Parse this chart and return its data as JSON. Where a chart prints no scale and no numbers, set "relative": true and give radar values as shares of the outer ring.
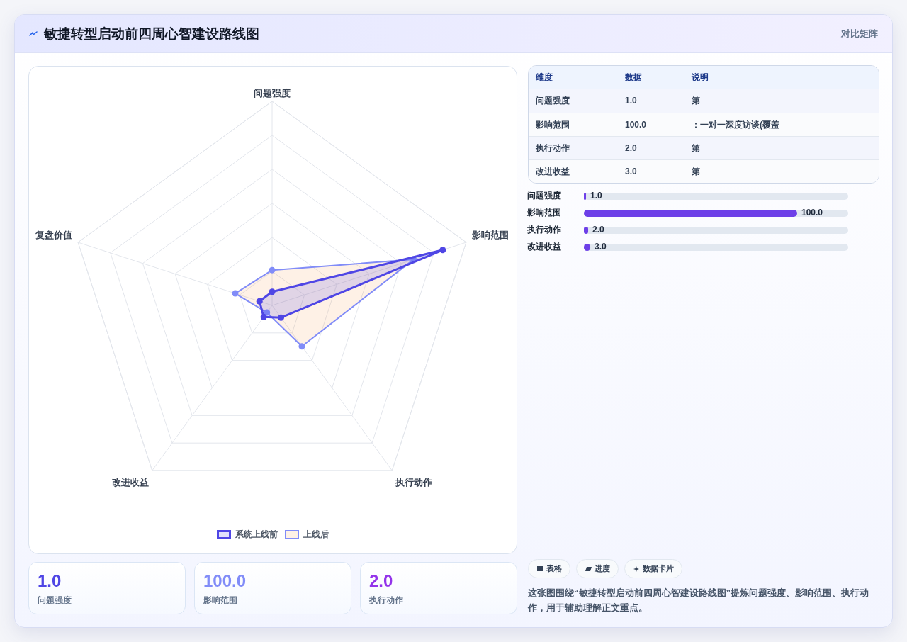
{
  "chart_data": [
    {
      "type": "other",
      "title": "敏捷转型启动前四周心智建设路线图",
      "subtitle": "对比矩阵"
    },
    {
      "type": "radar",
      "categories": [
        "问题强度",
        "影响范围",
        "执行动作",
        "改进收益",
        "复盘价值"
      ],
      "relative": true,
      "grid": true,
      "marker": "circle",
      "legend": "bottom",
      "series": [
        {
          "name": "系统上线前",
          "color": "#4f46e5",
          "values": [
            0.067,
            0.879,
            0.074,
            0.07,
            0.065
          ]
        },
        {
          "name": "上线后",
          "color": "#818cf8",
          "values": [
            0.173,
            0.729,
            0.248,
            0.043,
            0.19
          ]
        }
      ]
    },
    {
      "type": "other",
      "categories": [
        "维度",
        "数据",
        "说明"
      ],
      "cell_labels": [
        [
          "问题强度",
          "1.0",
          "第"
        ],
        [
          "影响范围",
          "100.0",
          "：一对一深度访谈(覆盖"
        ],
        [
          "执行动作",
          "2.0",
          "第"
        ],
        [
          "改进收益",
          "3.0",
          "第"
        ]
      ]
    },
    {
      "type": "bar",
      "orientation": "horizontal",
      "categories": [
        "问题强度",
        "影响范围",
        "执行动作",
        "改进收益"
      ],
      "values": [
        1.0,
        100.0,
        2.0,
        3.0
      ],
      "value_labels": [
        "1.0",
        "100.0",
        "2.0",
        "3.0"
      ],
      "color": "#6d3fe8",
      "tick_labels": "y"
    },
    {
      "type": "other",
      "categories": [
        "问题强度",
        "影响范围",
        "执行动作"
      ],
      "value_labels": [
        "1.0",
        "100.0",
        "2.0"
      ]
    },
    {
      "type": "other",
      "categories": [
        "表格",
        "进度",
        "数据卡片"
      ],
      "annotations": [
        "这张图围绕“敏捷转型启动前四周心智建设路线图”提炼问题强度、影响范围、执行动作，用于辅助理解正文重点。"
      ]
    }
  ]
}
